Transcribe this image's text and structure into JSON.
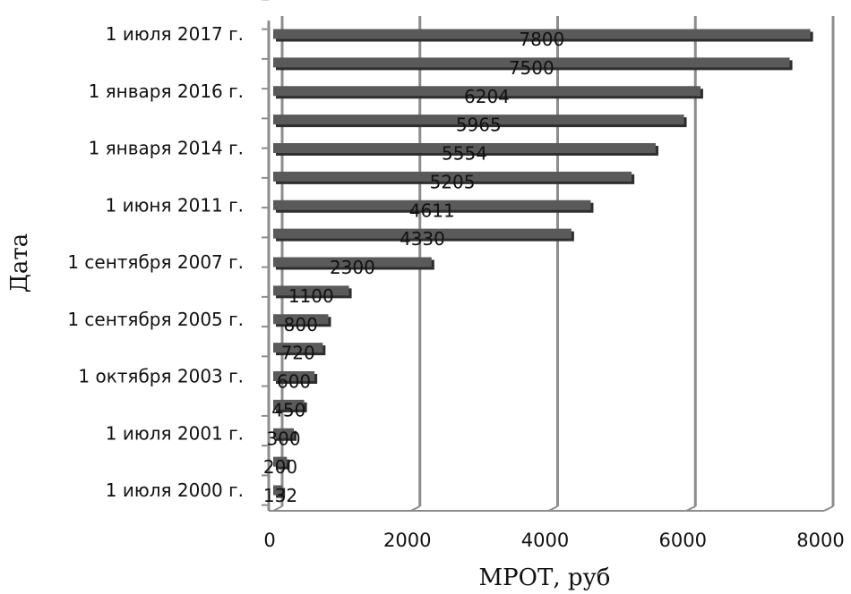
{
  "chart_data": {
    "type": "bar",
    "orientation": "horizontal",
    "categories": [
      "1 июля 2000 г.",
      "",
      "1 июля 2001 г.",
      "",
      "1 октября 2003 г.",
      "",
      "1 сентября 2005 г.",
      "",
      "1 сентября 2007 г.",
      "",
      "1 июня 2011 г.",
      "",
      "1 января 2014 г.",
      "",
      "1 января 2016 г.",
      "",
      "1 июля 2017 г."
    ],
    "values": [
      132,
      200,
      300,
      450,
      600,
      720,
      800,
      1100,
      2300,
      4330,
      4611,
      5205,
      5554,
      5965,
      6204,
      7500,
      7800
    ],
    "value_labels": [
      "132",
      "200",
      "300",
      "450",
      "600",
      "720",
      "800",
      "1100",
      "2300",
      "4330",
      "4611",
      "5205",
      "5554",
      "5965",
      "6204",
      "7500",
      "7800"
    ],
    "xlabel": "МРОТ, руб",
    "ylabel": "Дата",
    "xlim": [
      0,
      8000
    ],
    "xticks": [
      0,
      2000,
      4000,
      6000,
      8000
    ],
    "xtick_labels": [
      "0",
      "2000",
      "4000",
      "6000",
      "8000"
    ],
    "grid": true,
    "legend": "none",
    "colors": {
      "bar": "#5a5a5a",
      "bar_shadow": "#2e2e2e",
      "grid": "#8c8c8c",
      "text": "#111111"
    }
  }
}
